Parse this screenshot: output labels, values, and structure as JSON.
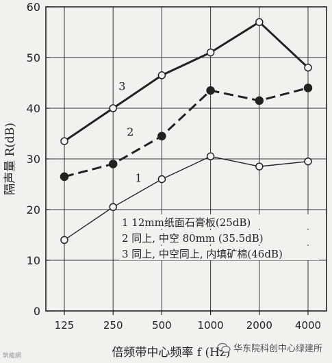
{
  "chart_data": {
    "type": "line",
    "categories": [
      "125",
      "250",
      "500",
      "1000",
      "2000",
      "4000"
    ],
    "ylabel": "隔声量 R(dB)",
    "xlabel": "倍频带中心频率 f (Hz)",
    "ylim": [
      0,
      60
    ],
    "yticks": [
      "0",
      "10",
      "20",
      "30",
      "40",
      "50",
      "60"
    ],
    "grid": true,
    "series": [
      {
        "name": "1",
        "values": [
          14,
          20.5,
          26,
          30.5,
          28.5,
          29.5
        ],
        "style": "thin-solid",
        "marker": "open-circle",
        "color": "#222222"
      },
      {
        "name": "2",
        "values": [
          26.5,
          29,
          34.5,
          43.5,
          41.5,
          44
        ],
        "style": "thick-dashed",
        "marker": "filled-circle",
        "color": "#222222"
      },
      {
        "name": "3",
        "values": [
          33.5,
          40,
          46.5,
          51,
          57,
          48
        ],
        "style": "thick-solid",
        "marker": "open-circle",
        "color": "#222222"
      }
    ],
    "legend": [
      "1  12mm纸面石膏板(25dB)",
      "2  同上, 中空 80mm (35.5dB)",
      "3  同上, 中空同上, 内填矿棉(46dB)"
    ]
  },
  "watermark": {
    "right_text": "华东院科创中心绿建所",
    "left_text": "筑龍網"
  }
}
